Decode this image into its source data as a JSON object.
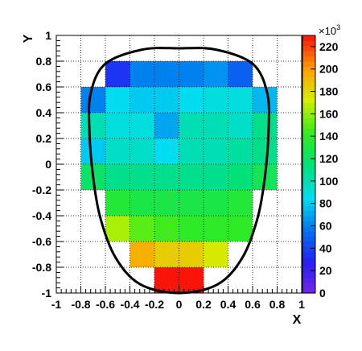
{
  "chart_data": {
    "type": "heatmap",
    "xlabel": "X",
    "ylabel": "Y",
    "xlim": [
      -1,
      1
    ],
    "ylim": [
      -1,
      1
    ],
    "grid": true,
    "x_ticks": [
      "-1",
      "-0.8",
      "-0.6",
      "-0.4",
      "-0.2",
      "0",
      "0.2",
      "0.4",
      "0.6",
      "0.8",
      "1"
    ],
    "y_ticks": [
      "-1",
      "-0.8",
      "-0.6",
      "-0.4",
      "-0.2",
      "0",
      "0.2",
      "0.4",
      "0.6",
      "0.8",
      "1"
    ],
    "x_bin_edges": [
      -0.8,
      -0.6,
      -0.4,
      -0.2,
      0,
      0.2,
      0.4,
      0.6,
      0.8
    ],
    "y_bin_edges": [
      -1,
      -0.8,
      -0.6,
      -0.4,
      -0.2,
      0,
      0.2,
      0.4,
      0.6,
      0.8
    ],
    "z_values_rows_top_to_bottom": [
      [
        null,
        35,
        60,
        60,
        60,
        65,
        50,
        null
      ],
      [
        60,
        85,
        80,
        80,
        85,
        90,
        90,
        75
      ],
      [
        100,
        90,
        90,
        70,
        100,
        100,
        95,
        110
      ],
      [
        80,
        95,
        95,
        85,
        100,
        100,
        105,
        110
      ],
      [
        120,
        110,
        110,
        110,
        110,
        110,
        115,
        125
      ],
      [
        null,
        135,
        130,
        130,
        130,
        130,
        135,
        null
      ],
      [
        null,
        165,
        150,
        145,
        140,
        140,
        140,
        null
      ],
      [
        null,
        null,
        195,
        185,
        185,
        175,
        null,
        null
      ],
      [
        null,
        null,
        null,
        230,
        230,
        null,
        null,
        null
      ]
    ],
    "colorbar": {
      "range": [
        0,
        230
      ],
      "ticks": [
        "0",
        "20",
        "40",
        "60",
        "80",
        "100",
        "120",
        "140",
        "160",
        "180",
        "200",
        "220"
      ],
      "exponent_label": "×10",
      "exponent_power": "3"
    }
  }
}
